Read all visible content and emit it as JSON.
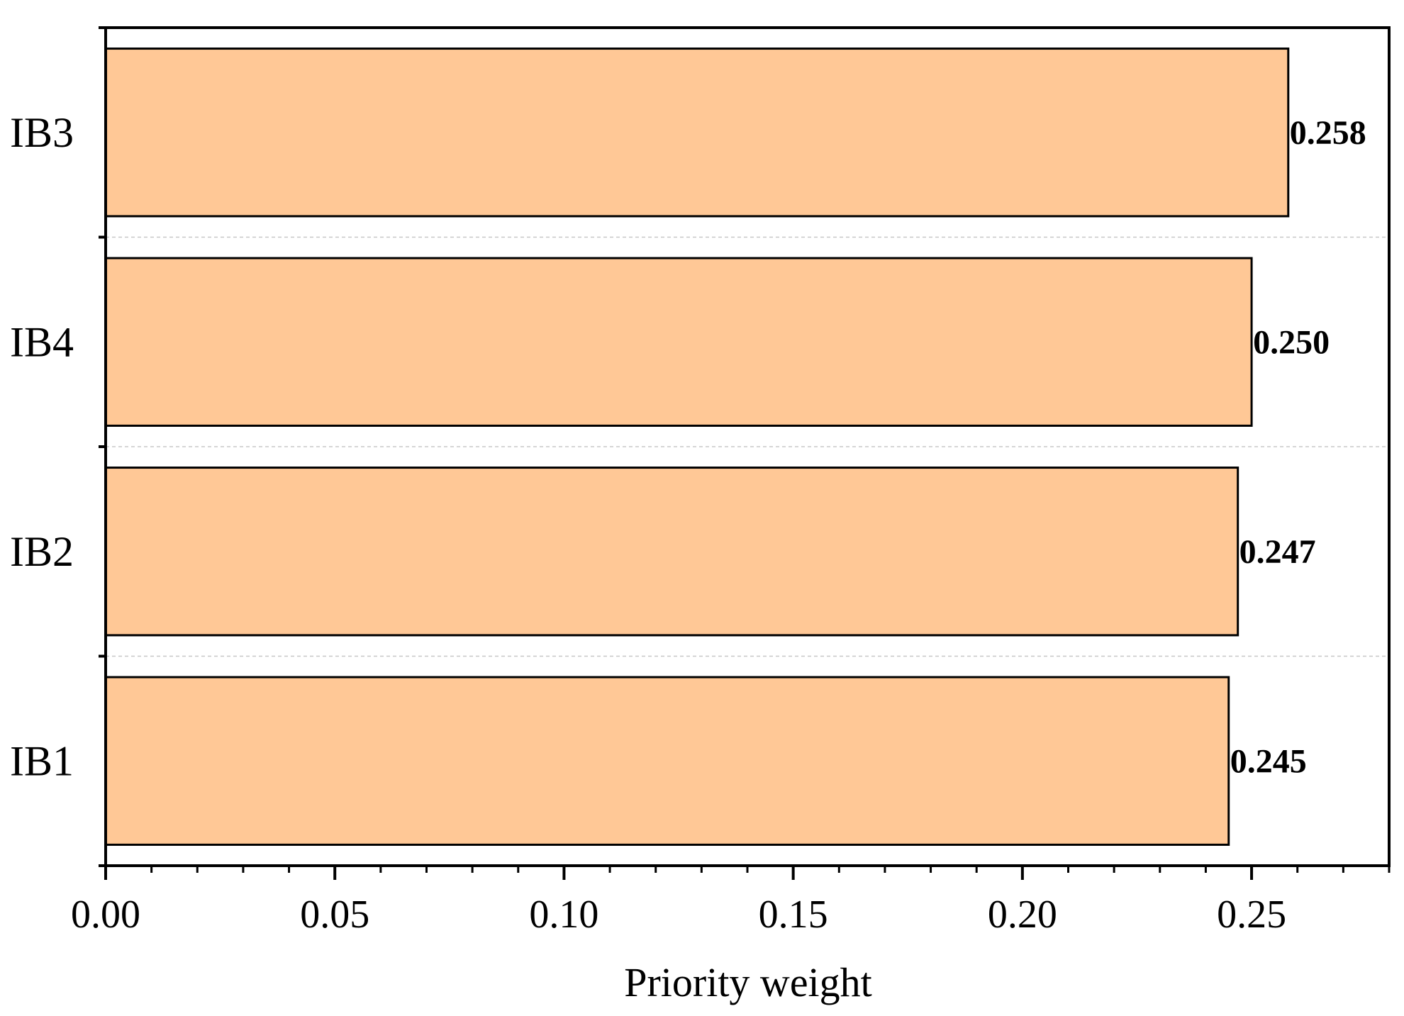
{
  "chart_data": {
    "type": "bar",
    "orientation": "horizontal",
    "categories": [
      "IB3",
      "IB4",
      "IB2",
      "IB1"
    ],
    "values": [
      0.258,
      0.25,
      0.247,
      0.245
    ],
    "data_labels": [
      "0.258",
      "0.250",
      "0.247",
      "0.245"
    ],
    "title": "",
    "xlabel": "Priority weight",
    "ylabel": "",
    "xlim": [
      0,
      0.28
    ],
    "xticks": [
      0.0,
      0.05,
      0.1,
      0.15,
      0.2,
      0.25
    ],
    "xtick_labels": [
      "0.00",
      "0.05",
      "0.10",
      "0.15",
      "0.20",
      "0.25"
    ],
    "minor_tick_step": 0.01,
    "bar_color": "#FFC896",
    "bar_edge_color": "#000000",
    "grid": "horizontal dashed separators",
    "legend": "none"
  }
}
